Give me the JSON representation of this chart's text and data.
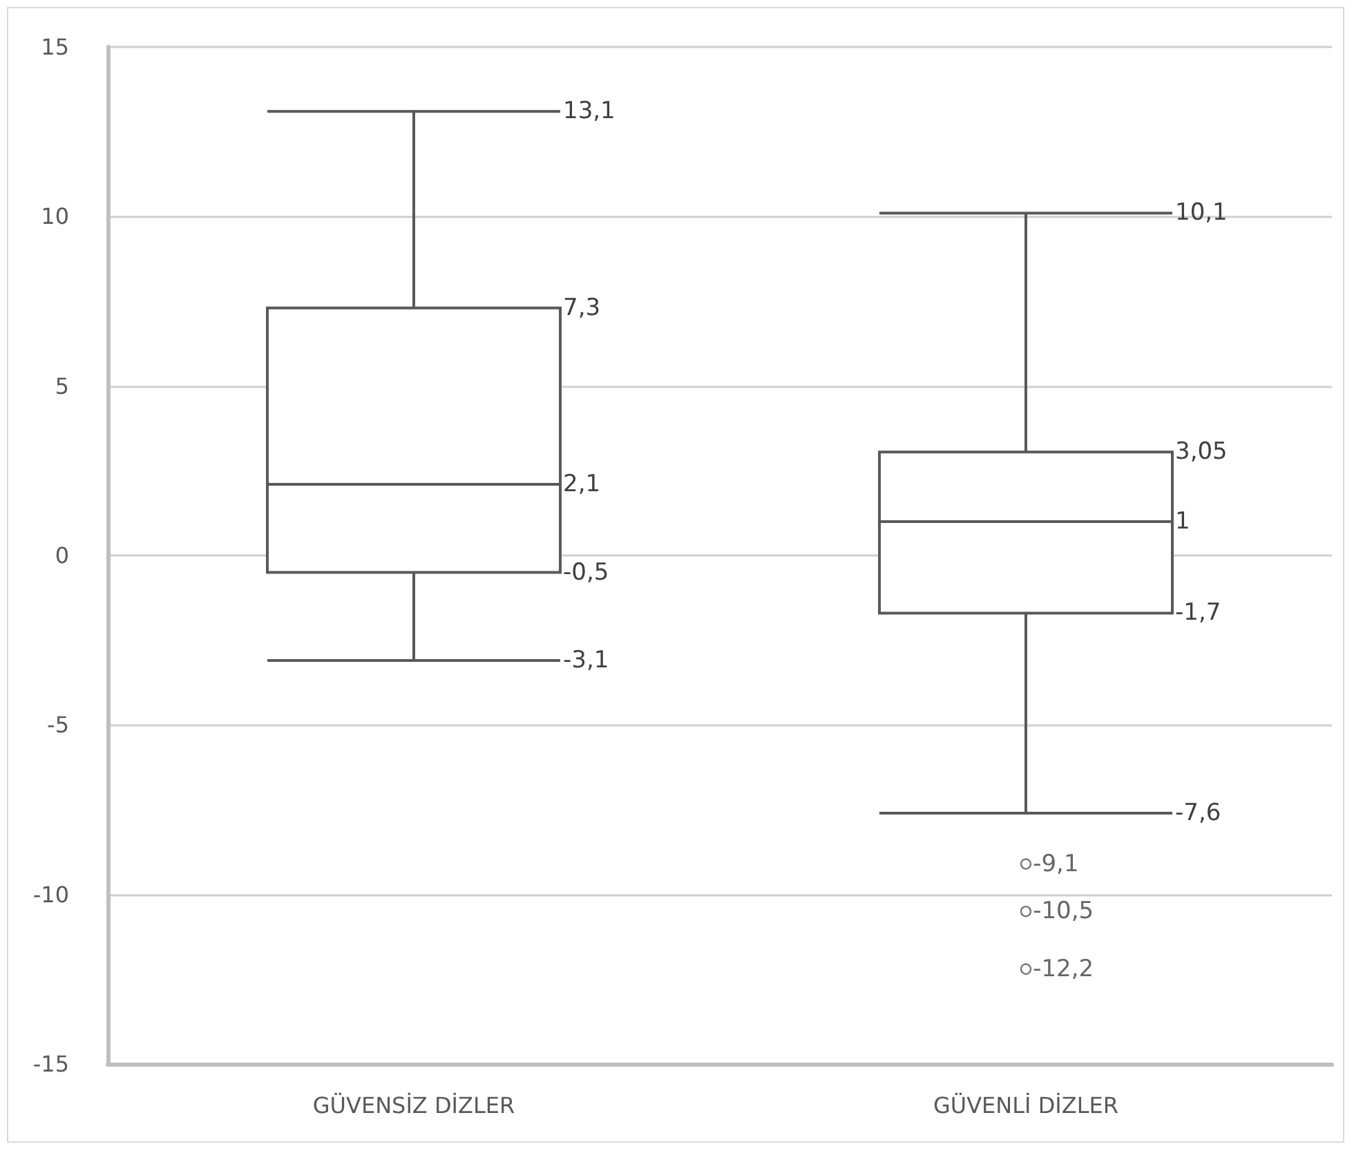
{
  "chart_data": {
    "type": "box",
    "categories": [
      "GÜVENSİZ DİZLER",
      "GÜVENLİ DİZLER"
    ],
    "boxes": [
      {
        "low": -3.1,
        "q1": -0.5,
        "median": 2.1,
        "q3": 7.3,
        "high": 13.1
      },
      {
        "low": -7.6,
        "q1": -1.7,
        "median": 1,
        "q3": 3.05,
        "high": 10.1,
        "outliers": [
          -9.1,
          -10.5,
          -12.2
        ]
      }
    ],
    "color": "#595959",
    "ylim": [
      -15,
      15
    ],
    "yticks": [
      -15,
      -10,
      -5,
      0,
      5,
      10,
      15
    ],
    "grid": "y",
    "value_labels": [
      [
        "13,1",
        "7,3",
        "2,1",
        "-0,5",
        "-3,1"
      ],
      [
        "10,1",
        "3,05",
        "1",
        "-1,7",
        "-7,6",
        "-9,1",
        "-10,5",
        "-12,2"
      ]
    ]
  }
}
